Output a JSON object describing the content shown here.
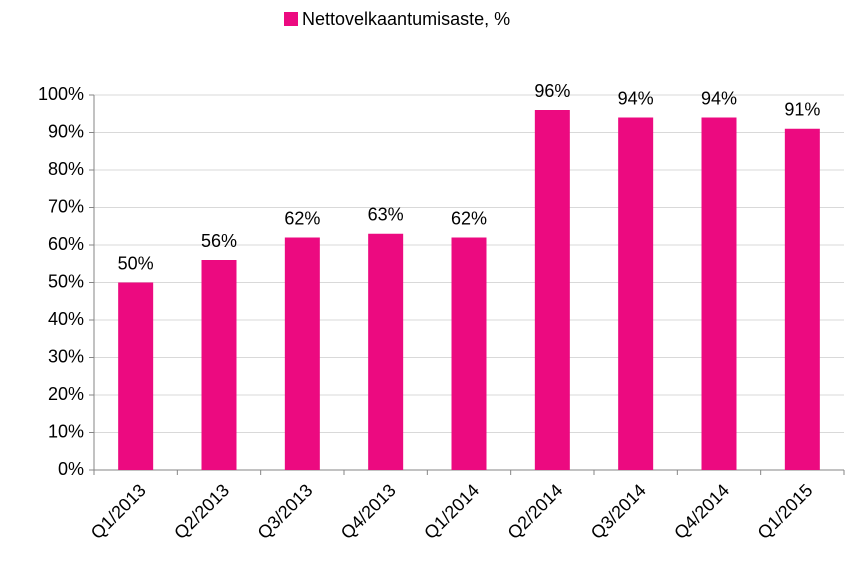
{
  "chart_data": {
    "type": "bar",
    "categories": [
      "Q1/2013",
      "Q2/2013",
      "Q3/2013",
      "Q4/2013",
      "Q1/2014",
      "Q2/2014",
      "Q3/2014",
      "Q4/2014",
      "Q1/2015"
    ],
    "series": [
      {
        "name": "Nettovelkaantumisaste, %",
        "color": "#ec0a80",
        "values": [
          50,
          56,
          62,
          63,
          62,
          96,
          94,
          94,
          91
        ],
        "value_labels": [
          "50%",
          "56%",
          "62%",
          "63%",
          "62%",
          "96%",
          "94%",
          "94%",
          "91%"
        ]
      }
    ],
    "ylim": [
      0,
      100
    ],
    "yticks": [
      {
        "value": 0,
        "label": "0%"
      },
      {
        "value": 10,
        "label": "10%"
      },
      {
        "value": 20,
        "label": "20%"
      },
      {
        "value": 30,
        "label": "30%"
      },
      {
        "value": 40,
        "label": "40%"
      },
      {
        "value": 50,
        "label": "50%"
      },
      {
        "value": 60,
        "label": "60%"
      },
      {
        "value": 70,
        "label": "70%"
      },
      {
        "value": 80,
        "label": "80%"
      },
      {
        "value": 90,
        "label": "90%"
      },
      {
        "value": 100,
        "label": "100%"
      }
    ],
    "grid": true,
    "legend": "top"
  }
}
